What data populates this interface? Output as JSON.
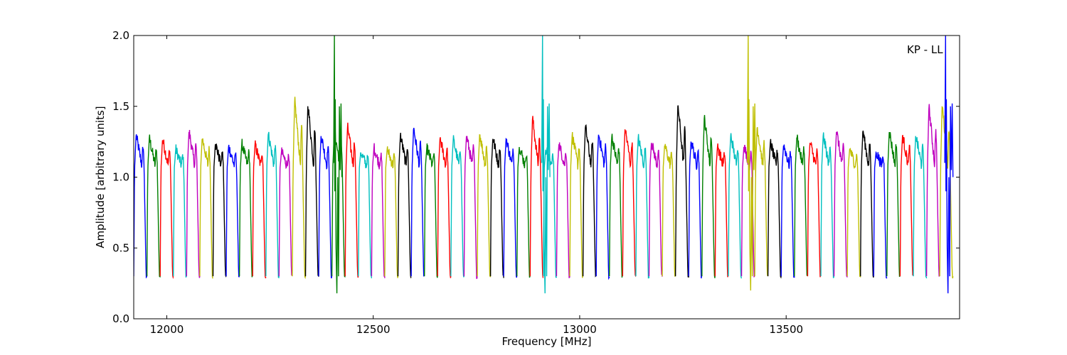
{
  "chart_data": {
    "type": "line",
    "xlabel": "Frequency [MHz]",
    "ylabel": "Amplitude [arbitrary units]",
    "annotation": "KP - LL",
    "xlim": [
      11920,
      13920
    ],
    "ylim": [
      0.0,
      2.0
    ],
    "x_ticks": [
      12000,
      12500,
      13000,
      13500
    ],
    "x_tick_labels": [
      "12000",
      "12500",
      "13000",
      "13500"
    ],
    "y_ticks": [
      0.0,
      0.5,
      1.0,
      1.5,
      2.0
    ],
    "y_tick_labels": [
      "0.0",
      "0.5",
      "1.0",
      "1.5",
      "2.0"
    ],
    "grid": false,
    "legend": "none",
    "colors": [
      "#0000ff",
      "#008000",
      "#ff0000",
      "#00bfbf",
      "#bf00bf",
      "#bfbf00",
      "#000000"
    ],
    "channel_width_mhz": 32,
    "channel_start_mhz": 11920,
    "channel_count": 62,
    "channel_notch_floor": 0.3,
    "channel_peaks": [
      1.3,
      1.28,
      1.27,
      1.2,
      1.33,
      1.28,
      1.24,
      1.22,
      1.24,
      1.23,
      1.31,
      1.18,
      1.55,
      1.52,
      1.3,
      1.33,
      1.36,
      1.18,
      1.21,
      1.2,
      1.3,
      1.35,
      1.21,
      1.28,
      1.27,
      1.3,
      1.31,
      1.28,
      1.28,
      1.22,
      1.42,
      1.2,
      1.24,
      1.3,
      1.36,
      1.31,
      1.29,
      1.35,
      1.28,
      1.25,
      1.23,
      1.52,
      1.26,
      1.43,
      1.22,
      1.3,
      1.22,
      1.36,
      1.25,
      1.23,
      1.29,
      1.25,
      1.3,
      1.33,
      1.2,
      1.33,
      1.18,
      1.33,
      1.3,
      1.3,
      1.5,
      1.52
    ],
    "spikes": [
      {
        "x": 12408,
        "ymax": 2.0,
        "ymin": 0.18,
        "color": "#008000"
      },
      {
        "x": 12912,
        "ymax": 2.0,
        "ymin": 0.18,
        "color": "#00bfbf"
      },
      {
        "x": 13410,
        "ymax": 2.0,
        "ymin": 0.2,
        "color": "#bfbf00"
      },
      {
        "x": 13888,
        "ymax": 2.0,
        "ymin": 0.18,
        "color": "#0000ff"
      }
    ]
  }
}
